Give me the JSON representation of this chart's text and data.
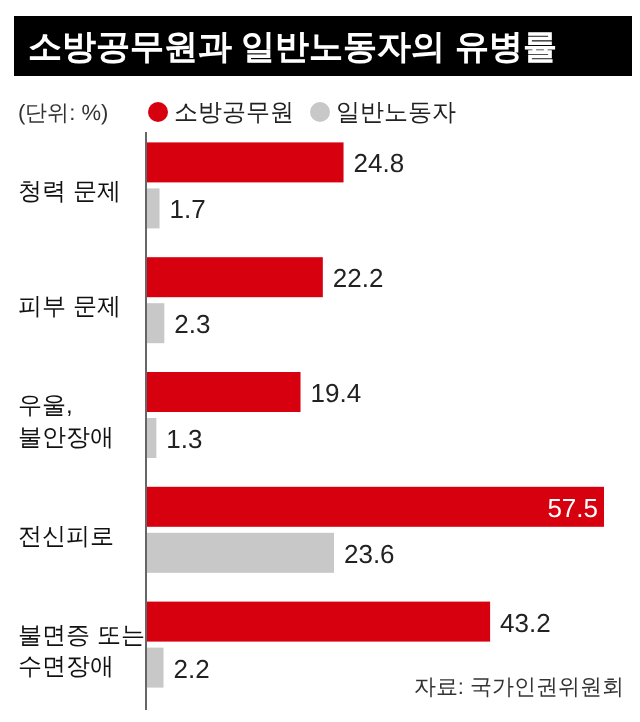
{
  "chart_data": {
    "type": "bar",
    "orientation": "horizontal",
    "title": "소방공무원과 일반노동자의 유병률",
    "categories": [
      "청력 문제",
      "피부 문제",
      "우울,\n불안장애",
      "전신피로",
      "불면증 또는\n수면장애"
    ],
    "series": [
      {
        "name": "소방공무원",
        "color": "#d7000f",
        "values": [
          24.8,
          22.2,
          19.4,
          57.5,
          43.2
        ]
      },
      {
        "name": "일반노동자",
        "color": "#c8c8c8",
        "values": [
          1.7,
          2.3,
          1.3,
          23.6,
          2.2
        ]
      }
    ],
    "data_labels": true,
    "legend": "top",
    "annotations": [
      "(단위: %)",
      "자료: 국가인권위원회"
    ]
  }
}
